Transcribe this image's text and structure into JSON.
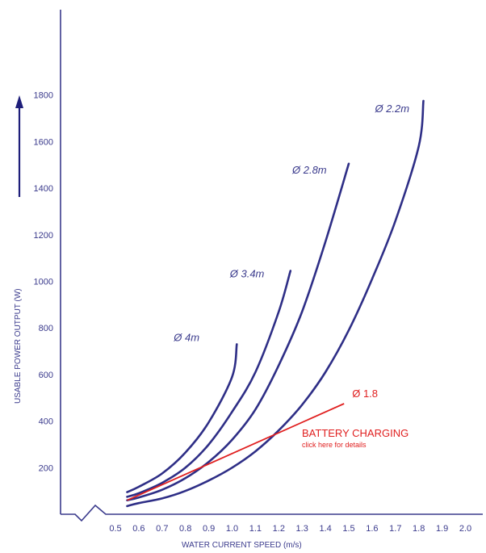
{
  "chart_data": {
    "type": "line",
    "xlabel": "WATER CURRENT SPEED (m/s)",
    "ylabel": "USABLE POWER OUTPUT (W)",
    "x_ticks": [
      "0.5",
      "0.6",
      "0.7",
      "0.8",
      "0.9",
      "1.0",
      "1.1",
      "1.2",
      "1.3",
      "1.4",
      "1.5",
      "1.6",
      "1.7",
      "1.8",
      "1.9",
      "2.0"
    ],
    "y_ticks": [
      "200",
      "400",
      "600",
      "800",
      "1000",
      "1200",
      "1400",
      "1600",
      "1800"
    ],
    "xlim": [
      0.5,
      2.0
    ],
    "ylim": [
      0,
      1800
    ],
    "grid": false,
    "series": [
      {
        "name": "Ø 4m",
        "x": [
          0.55,
          0.6,
          0.7,
          0.8,
          0.9,
          1.0,
          1.02
        ],
        "y": [
          95,
          118,
          175,
          265,
          395,
          590,
          730
        ]
      },
      {
        "name": "Ø 3.4m",
        "x": [
          0.55,
          0.6,
          0.7,
          0.8,
          0.9,
          1.0,
          1.1,
          1.2,
          1.25
        ],
        "y": [
          75,
          90,
          135,
          200,
          300,
          440,
          610,
          870,
          1045
        ]
      },
      {
        "name": "Ø 2.8m",
        "x": [
          0.55,
          0.6,
          0.7,
          0.8,
          0.9,
          1.0,
          1.1,
          1.2,
          1.3,
          1.4,
          1.5
        ],
        "y": [
          60,
          72,
          105,
          155,
          225,
          320,
          450,
          640,
          870,
          1170,
          1505
        ]
      },
      {
        "name": "Ø 2.2m",
        "x": [
          0.55,
          0.6,
          0.7,
          0.8,
          0.9,
          1.0,
          1.1,
          1.2,
          1.3,
          1.4,
          1.5,
          1.6,
          1.7,
          1.8,
          1.82
        ],
        "y": [
          35,
          48,
          68,
          100,
          145,
          200,
          270,
          360,
          470,
          610,
          790,
          1010,
          1260,
          1580,
          1775
        ]
      },
      {
        "name": "Ø 1.8",
        "x": [
          0.55,
          1.48
        ],
        "y": [
          60,
          475
        ],
        "color": "#e02020"
      }
    ],
    "annotation": {
      "title": "BATTERY CHARGING",
      "subtitle": "click here for details",
      "color": "#e02020"
    }
  }
}
